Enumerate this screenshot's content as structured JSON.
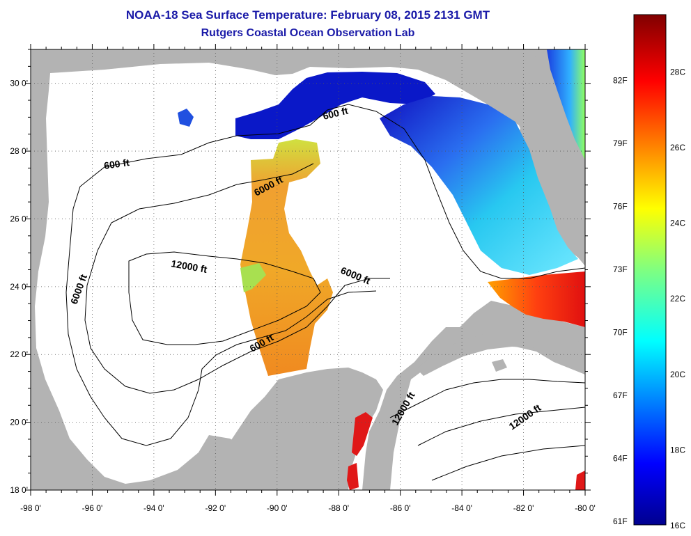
{
  "map": {
    "title": "NOAA-18 Sea Surface Temperature:  February 08, 2015 2131 GMT",
    "subtitle": "Rutgers Coastal Ocean Observation Lab",
    "lon_range": [
      -98,
      -80
    ],
    "lat_range": [
      18,
      31
    ],
    "x_ticks": [
      "-98 0'",
      "-96 0'",
      "-94 0'",
      "-92 0'",
      "-90 0'",
      "-88 0'",
      "-86 0'",
      "-84 0'",
      "-82 0'",
      "-80 0'"
    ],
    "y_ticks": [
      "18 0'",
      "20 0'",
      "22 0'",
      "24 0'",
      "26 0'",
      "28 0'",
      "30 0'"
    ],
    "contour_labels": [
      "600 ft",
      "600 ft",
      "6000 ft",
      "6000 ft",
      "12000 ft",
      "6000 ft",
      "600 ft",
      "12000 ft",
      "12000 ft"
    ],
    "colors": {
      "land": "#b3b3b3",
      "ocean_no_data": "#ffffff",
      "title": "#1a1aa8"
    }
  },
  "colorbar": {
    "fahrenheit_labels": [
      "82F",
      "79F",
      "76F",
      "73F",
      "70F",
      "67F",
      "64F",
      "61F"
    ],
    "celsius_labels": [
      "28C",
      "26C",
      "24C",
      "22C",
      "20C",
      "18C",
      "16C"
    ],
    "range_c": [
      16,
      29.5
    ]
  }
}
